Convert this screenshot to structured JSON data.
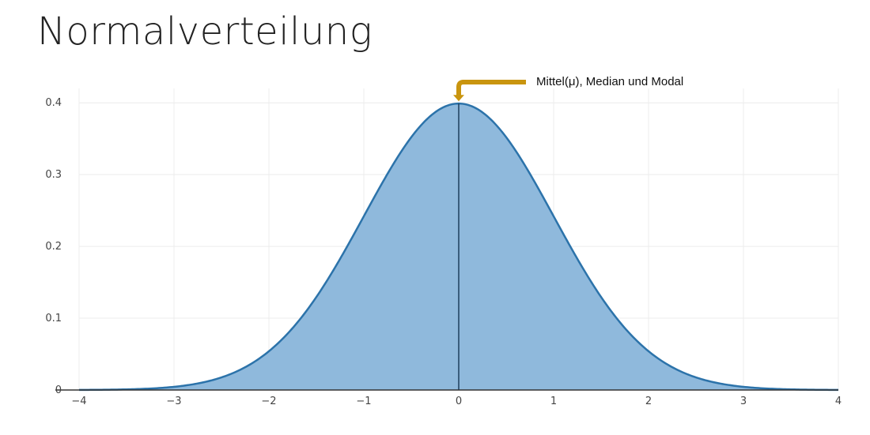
{
  "title": "Normalverteilung",
  "chart_data": {
    "type": "area",
    "title": "",
    "xlabel": "",
    "ylabel": "",
    "xlim": [
      -4,
      4
    ],
    "ylim": [
      0,
      0.42
    ],
    "grid": true,
    "x_ticks": [
      -4,
      -3,
      -2,
      -1,
      0,
      1,
      2,
      3,
      4
    ],
    "x_tick_labels": [
      "−4",
      "−3",
      "−2",
      "−1",
      "0",
      "1",
      "2",
      "3",
      "4"
    ],
    "y_ticks": [
      0,
      0.1,
      0.2,
      0.3,
      0.4
    ],
    "y_tick_labels": [
      "0",
      "0.1",
      "0.2",
      "0.3",
      "0.4"
    ],
    "series": [
      {
        "function": "standard normal density",
        "mean": 0,
        "std": 1,
        "x": [
          -4,
          -3.5,
          -3,
          -2.5,
          -2,
          -1.5,
          -1,
          -0.5,
          0,
          0.5,
          1,
          1.5,
          2,
          2.5,
          3,
          3.5,
          4
        ],
        "y": [
          0.0001,
          0.0009,
          0.0044,
          0.0175,
          0.054,
          0.1295,
          0.242,
          0.3521,
          0.3989,
          0.3521,
          0.242,
          0.1295,
          0.054,
          0.0175,
          0.0044,
          0.0009,
          0.0001
        ]
      }
    ],
    "vertical_line_x": 0,
    "annotation": {
      "text": "Mittel(μ), Median und Modal",
      "x": 0,
      "y": 0.4
    },
    "colors": {
      "fill": "#8fb9dc",
      "line": "#2c73aa",
      "arrow": "#c9950f",
      "axis": "#333333",
      "grid": "#ececec"
    }
  }
}
